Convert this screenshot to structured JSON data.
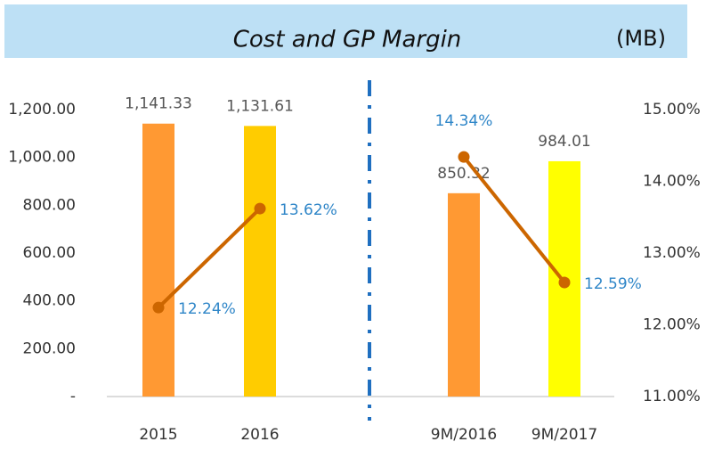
{
  "chart_data": {
    "type": "bar-line",
    "title": "Cost and GP Margin",
    "unit_label": "(MB)",
    "categories": [
      "2015",
      "2016",
      "9M/2016",
      "9M/2017"
    ],
    "bars": {
      "values": [
        1141.33,
        1131.61,
        850.32,
        984.01
      ],
      "value_labels": [
        "1,141.33",
        "1,131.61",
        "850.32",
        "984.01"
      ],
      "colors": [
        "#ff9933",
        "#ffcc00",
        "#ff9933",
        "#ffff00"
      ]
    },
    "series": [
      {
        "color": "#cc6600",
        "axis": "y2",
        "values": [
          12.24,
          13.62,
          null,
          null
        ],
        "value_labels": [
          "12.24%",
          "13.62%",
          null,
          null
        ]
      },
      {
        "color": "#cc6600",
        "axis": "y2",
        "values": [
          null,
          null,
          14.34,
          12.59
        ],
        "value_labels": [
          null,
          null,
          "14.34%",
          "12.59%"
        ]
      }
    ],
    "ylim": [
      0,
      1200
    ],
    "yticks": [
      {
        "value": 0,
        "label": "-"
      },
      {
        "value": 200,
        "label": "200.00"
      },
      {
        "value": 400,
        "label": "400.00"
      },
      {
        "value": 600,
        "label": "600.00"
      },
      {
        "value": 800,
        "label": "800.00"
      },
      {
        "value": 1000,
        "label": "1,000.00"
      },
      {
        "value": 1200,
        "label": "1,200.00"
      }
    ],
    "y2lim": [
      11,
      15
    ],
    "y2ticks": [
      {
        "value": 11,
        "label": "11.00%"
      },
      {
        "value": 12,
        "label": "12.00%"
      },
      {
        "value": 13,
        "label": "13.00%"
      },
      {
        "value": 14,
        "label": "14.00%"
      },
      {
        "value": 15,
        "label": "15.00%"
      }
    ]
  }
}
